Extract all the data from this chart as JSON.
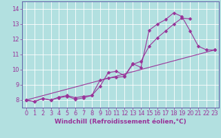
{
  "background_color": "#b2e0e0",
  "grid_color": "#c8eaea",
  "line_color": "#993399",
  "border_color": "#6666aa",
  "xlabel": "Windchill (Refroidissement éolien,°C)",
  "xlim": [
    -0.5,
    23.5
  ],
  "ylim": [
    7.5,
    14.5
  ],
  "yticks": [
    8,
    9,
    10,
    11,
    12,
    13,
    14
  ],
  "xticks": [
    0,
    1,
    2,
    3,
    4,
    5,
    6,
    7,
    8,
    9,
    10,
    11,
    12,
    13,
    14,
    15,
    16,
    17,
    18,
    19,
    20,
    21,
    22,
    23
  ],
  "line1_x": [
    0,
    1,
    2,
    3,
    4,
    5,
    6,
    7,
    8,
    9,
    10,
    11,
    12,
    13,
    14,
    15,
    16,
    17,
    18,
    19,
    20,
    21,
    22,
    23
  ],
  "line1_y": [
    8.0,
    7.9,
    8.1,
    8.0,
    8.15,
    8.25,
    8.05,
    8.15,
    8.3,
    8.9,
    9.8,
    9.9,
    9.6,
    10.4,
    10.15,
    12.6,
    13.0,
    13.3,
    13.75,
    13.5,
    12.55,
    11.55,
    11.3,
    11.3
  ],
  "line2_x": [
    0,
    1,
    2,
    3,
    4,
    5,
    6,
    7,
    8,
    9,
    10,
    11,
    12,
    13,
    14,
    15,
    16,
    17,
    18,
    19,
    20
  ],
  "line2_y": [
    8.0,
    7.9,
    8.1,
    8.0,
    8.2,
    8.3,
    8.15,
    8.25,
    8.3,
    9.3,
    9.45,
    9.5,
    9.55,
    10.35,
    10.55,
    11.55,
    12.1,
    12.55,
    13.0,
    13.4,
    13.35
  ],
  "line3_x": [
    0,
    23
  ],
  "line3_y": [
    8.0,
    11.3
  ],
  "marker": "D",
  "markersize": 2.5,
  "linewidth": 0.8,
  "xlabel_fontsize": 6.5,
  "tick_fontsize": 6.0
}
